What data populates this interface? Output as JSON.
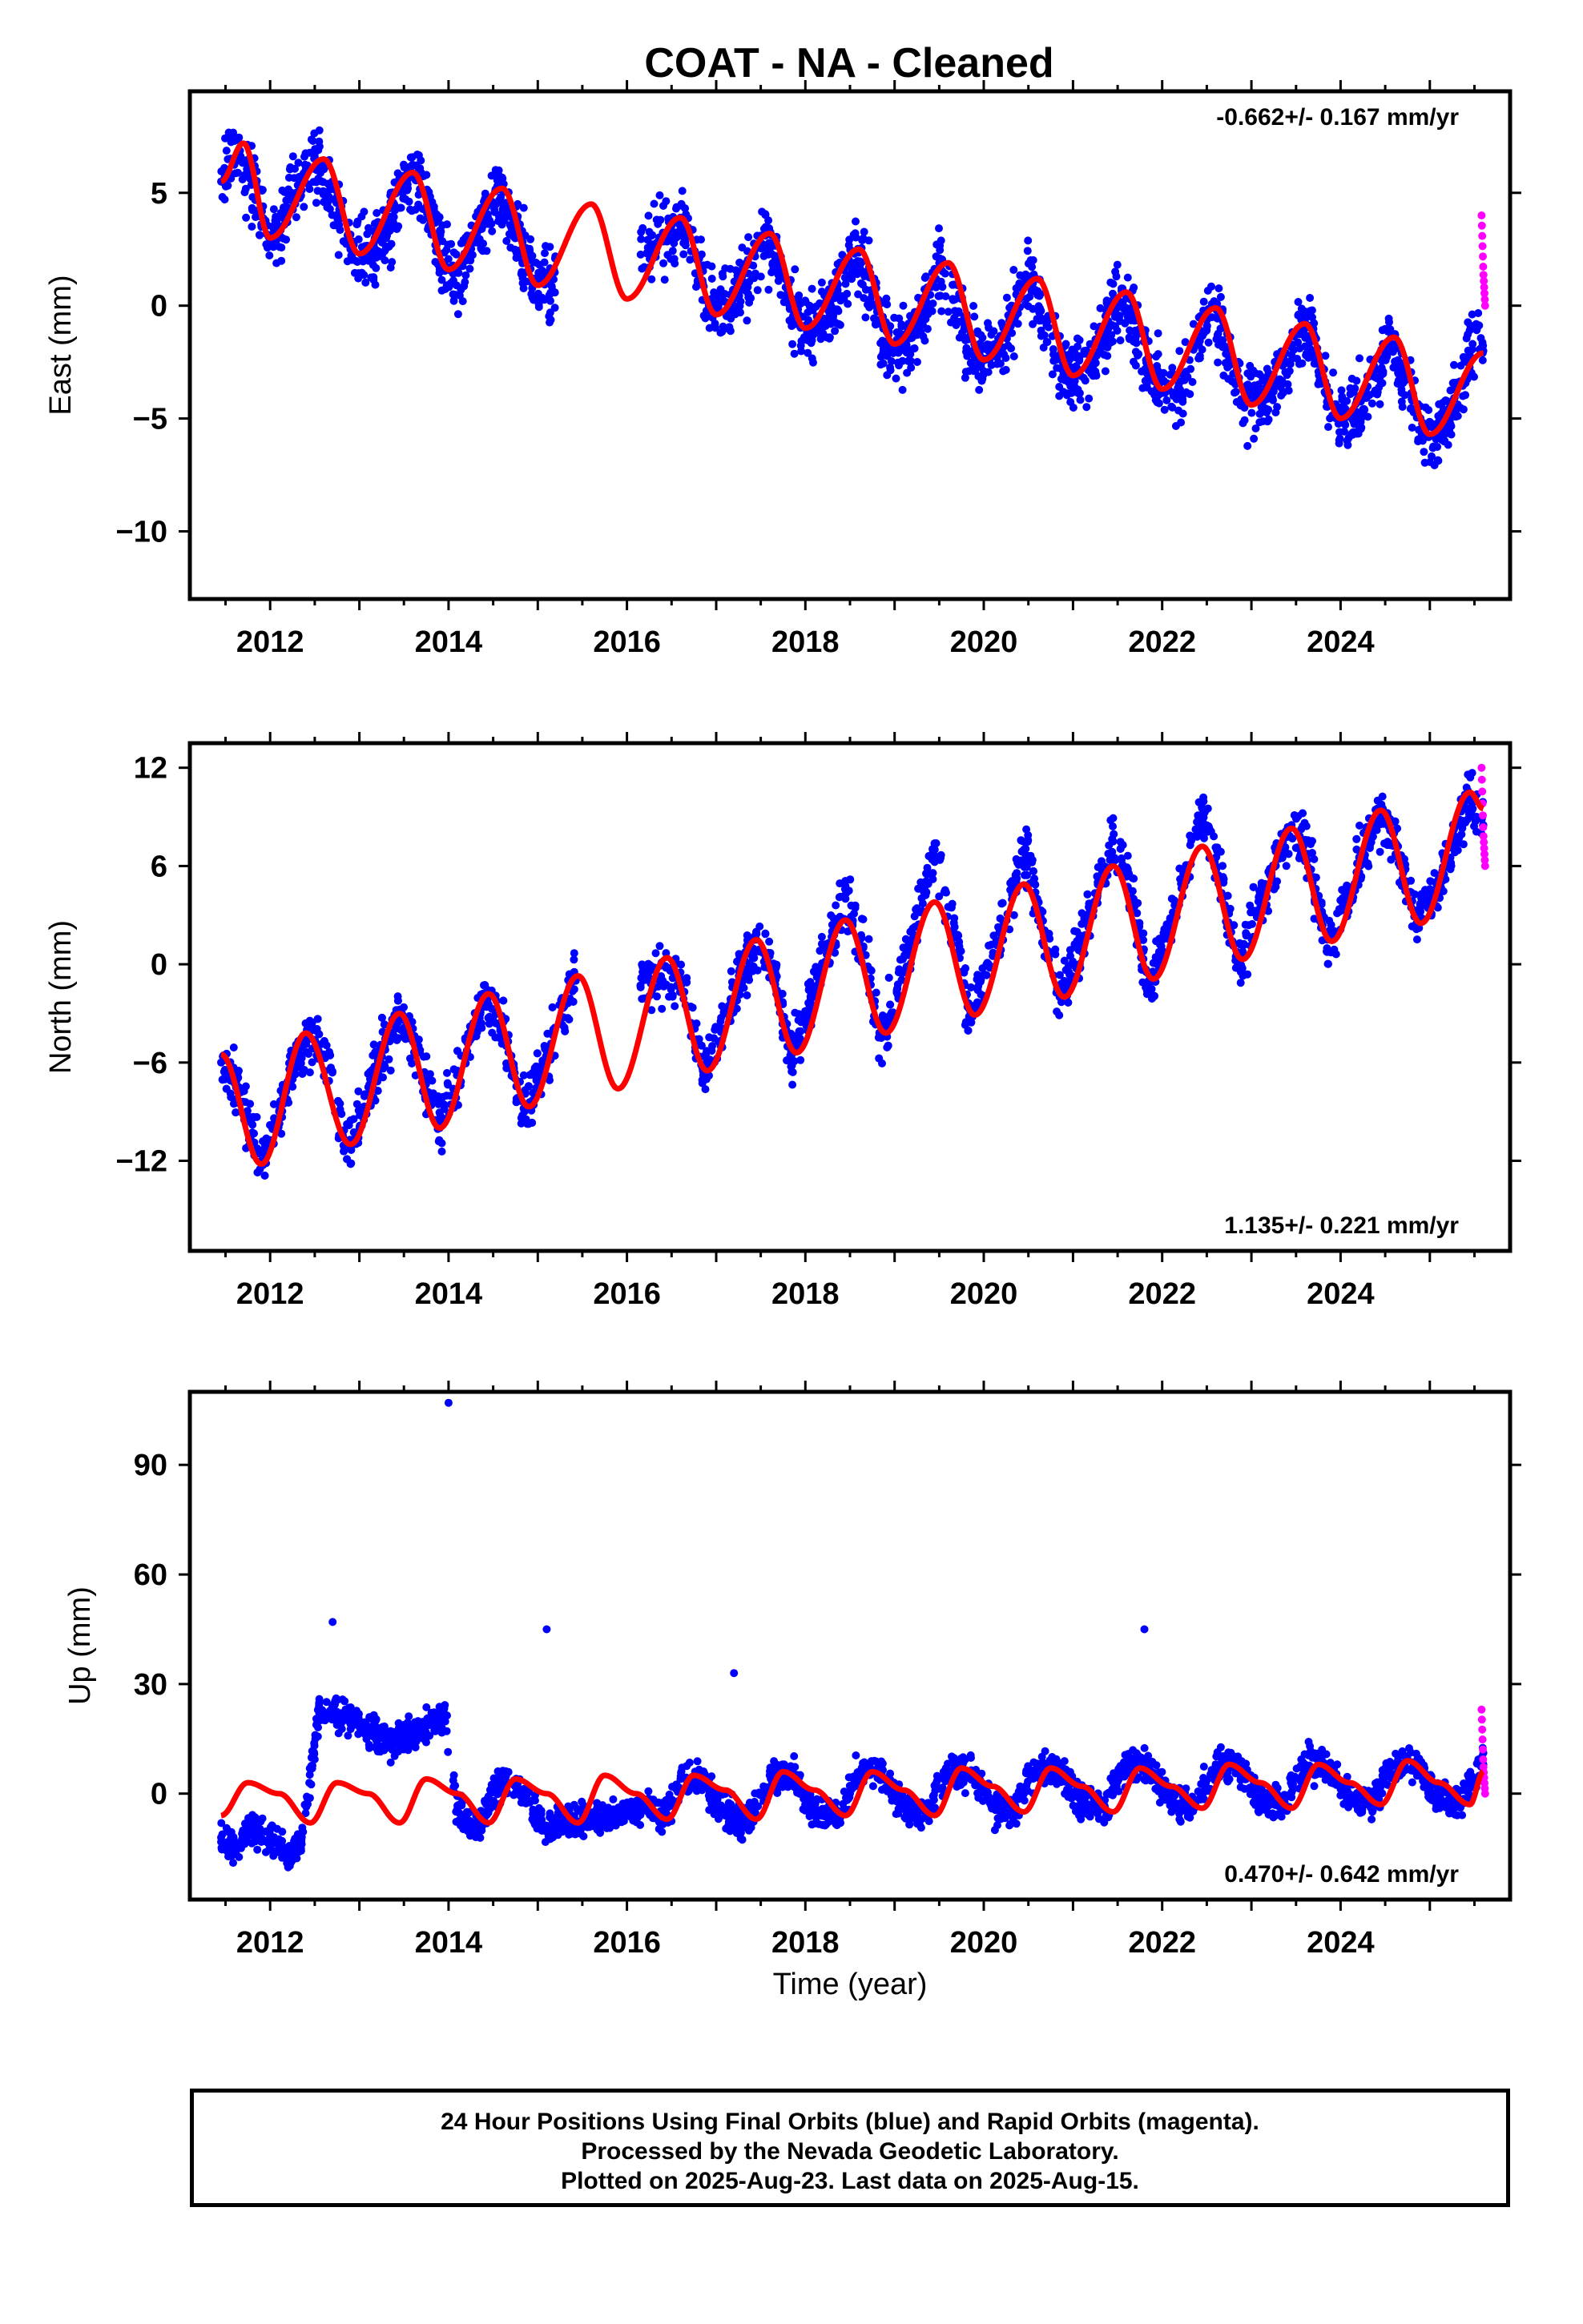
{
  "title": "COAT  - NA - Cleaned",
  "xlabel": "Time (year)",
  "footer": {
    "line1": "24 Hour Positions Using Final Orbits (blue) and Rapid Orbits (magenta).",
    "line2": "Processed by the Nevada Geodetic Laboratory.",
    "line3": "Plotted on 2025-Aug-23. Last data on 2025-Aug-15."
  },
  "colors": {
    "final": "#0000ff",
    "rapid": "#ff00ff",
    "model": "#ff0000",
    "frame": "#000000"
  },
  "chart_data": [
    {
      "type": "scatter",
      "component": "east",
      "ylabel": "East (mm)",
      "rate_text": "-0.662+/- 0.167 mm/yr",
      "rate_position": "top-right",
      "xlim": [
        2011.1,
        2025.9
      ],
      "ylim": [
        -13,
        9.5
      ],
      "xticks": [
        2012,
        2014,
        2016,
        2018,
        2020,
        2022,
        2024
      ],
      "xtick_labels": [
        "2012",
        "2014",
        "2016",
        "2018",
        "2020",
        "2022",
        "2024"
      ],
      "yticks": [
        5,
        0,
        -5,
        -10
      ],
      "ytick_labels": [
        "5",
        "0",
        "−5",
        "−10"
      ],
      "data_gap": [
        2015.2,
        2016.15
      ],
      "series": [
        {
          "role": "final_orbits",
          "x": [
            2011.45,
            2011.6,
            2011.75,
            2011.9,
            2012.0,
            2012.1,
            2012.25,
            2012.5,
            2012.65,
            2012.9,
            2013.1,
            2013.3,
            2013.5,
            2013.65,
            2013.8,
            2014.0,
            2014.1,
            2014.3,
            2014.55,
            2014.7,
            2014.95,
            2015.1,
            2016.4,
            2016.6,
            2016.85,
            2017.1,
            2017.3,
            2017.55,
            2017.7,
            2017.95,
            2018.25,
            2018.55,
            2018.75,
            2018.9,
            2019.25,
            2019.5,
            2019.65,
            2019.9,
            2020.2,
            2020.5,
            2020.65,
            2020.9,
            2021.2,
            2021.55,
            2021.7,
            2021.95,
            2022.25,
            2022.55,
            2022.7,
            2022.95,
            2023.25,
            2023.6,
            2023.75,
            2023.95,
            2024.25,
            2024.55,
            2024.7,
            2024.95,
            2025.2,
            2025.45,
            2025.6
          ],
          "y": [
            5.5,
            7.3,
            5.8,
            3.6,
            2.9,
            3.3,
            4.9,
            6.6,
            5.4,
            2.7,
            2.3,
            3.1,
            5.5,
            5.9,
            3.5,
            1.7,
            1.6,
            2.8,
            5.2,
            4.1,
            1.2,
            1.1,
            3.0,
            3.9,
            1.0,
            -0.3,
            0.8,
            3.1,
            1.6,
            -0.9,
            -0.6,
            2.3,
            0.5,
            -1.6,
            -1.3,
            1.9,
            0.3,
            -2.3,
            -2.0,
            1.3,
            -0.6,
            -3.0,
            -2.7,
            0.6,
            -1.1,
            -3.6,
            -3.3,
            -0.1,
            -1.8,
            -4.3,
            -3.8,
            -0.7,
            -2.5,
            -5.0,
            -4.6,
            -1.5,
            -3.2,
            -5.8,
            -5.3,
            -2.2,
            -2.0
          ]
        },
        {
          "role": "rapid_orbits",
          "x": [
            2025.58,
            2025.6,
            2025.62
          ],
          "y": [
            4.0,
            1.5,
            0.0
          ]
        },
        {
          "role": "model",
          "x": [
            2011.45,
            2011.7,
            2012.0,
            2012.6,
            2013.0,
            2013.6,
            2014.0,
            2014.6,
            2015.0,
            2015.6,
            2016.0,
            2016.6,
            2017.0,
            2017.6,
            2018.0,
            2018.6,
            2019.0,
            2019.6,
            2020.0,
            2020.6,
            2021.0,
            2021.6,
            2022.0,
            2022.6,
            2023.0,
            2023.6,
            2024.0,
            2024.6,
            2025.0,
            2025.6
          ],
          "y": [
            5.5,
            7.2,
            3.0,
            6.5,
            2.3,
            5.9,
            1.6,
            5.2,
            0.9,
            4.5,
            0.3,
            3.9,
            -0.4,
            3.2,
            -1.0,
            2.5,
            -1.7,
            1.9,
            -2.4,
            1.2,
            -3.1,
            0.6,
            -3.7,
            -0.1,
            -4.4,
            -0.8,
            -5.0,
            -1.4,
            -5.7,
            -2.1
          ]
        }
      ]
    },
    {
      "type": "scatter",
      "component": "north",
      "ylabel": "North (mm)",
      "rate_text": "1.135+/- 0.221 mm/yr",
      "rate_position": "bottom-right",
      "xlim": [
        2011.1,
        2025.9
      ],
      "ylim": [
        -17.5,
        13.5
      ],
      "xticks": [
        2012,
        2014,
        2016,
        2018,
        2020,
        2022,
        2024
      ],
      "xtick_labels": [
        "2012",
        "2014",
        "2016",
        "2018",
        "2020",
        "2022",
        "2024"
      ],
      "yticks": [
        12,
        6,
        0,
        -6,
        -12
      ],
      "ytick_labels": [
        "12",
        "6",
        "0",
        "−6",
        "−12"
      ],
      "data_gap": [
        2015.45,
        2016.15
      ],
      "series": [
        {
          "role": "final_orbits",
          "x": [
            2011.45,
            2011.65,
            2011.9,
            2012.1,
            2012.4,
            2012.6,
            2012.9,
            2013.1,
            2013.45,
            2013.6,
            2013.9,
            2014.1,
            2014.4,
            2014.6,
            2014.85,
            2015.1,
            2015.4,
            2016.4,
            2016.6,
            2016.85,
            2017.1,
            2017.45,
            2017.6,
            2017.85,
            2018.1,
            2018.45,
            2018.65,
            2018.85,
            2019.1,
            2019.45,
            2019.6,
            2019.85,
            2020.1,
            2020.45,
            2020.6,
            2020.85,
            2021.1,
            2021.45,
            2021.6,
            2021.85,
            2022.1,
            2022.45,
            2022.6,
            2022.85,
            2023.1,
            2023.45,
            2023.6,
            2023.85,
            2024.1,
            2024.45,
            2024.6,
            2024.85,
            2025.1,
            2025.45,
            2025.6
          ],
          "y": [
            -6.0,
            -7.5,
            -12.0,
            -9.0,
            -4.5,
            -5.5,
            -11.0,
            -7.5,
            -3.0,
            -4.5,
            -10.0,
            -6.5,
            -2.2,
            -3.5,
            -9.0,
            -5.5,
            -1.0,
            -1.0,
            -0.5,
            -6.5,
            -3.0,
            1.5,
            0.5,
            -5.5,
            -1.5,
            4.0,
            1.0,
            -4.5,
            -0.5,
            7.0,
            3.5,
            -3.0,
            0.5,
            7.0,
            4.0,
            -2.0,
            1.5,
            7.5,
            5.5,
            -1.0,
            2.5,
            9.5,
            6.5,
            0.0,
            3.5,
            8.5,
            7.5,
            1.5,
            4.5,
            9.0,
            8.0,
            2.5,
            5.0,
            10.0,
            8.5
          ]
        },
        {
          "role": "rapid_orbits",
          "x": [
            2025.58,
            2025.6,
            2025.62
          ],
          "y": [
            12.0,
            8.0,
            6.0
          ]
        },
        {
          "role": "model",
          "x": [
            2011.45,
            2011.9,
            2012.4,
            2012.9,
            2013.45,
            2013.9,
            2014.45,
            2014.9,
            2015.45,
            2015.9,
            2016.45,
            2016.9,
            2017.45,
            2017.9,
            2018.45,
            2018.9,
            2019.45,
            2019.9,
            2020.45,
            2020.9,
            2021.45,
            2021.9,
            2022.45,
            2022.9,
            2023.45,
            2023.9,
            2024.45,
            2024.9,
            2025.45,
            2025.6
          ],
          "y": [
            -5.5,
            -12.2,
            -4.2,
            -11.0,
            -3.0,
            -10.0,
            -1.8,
            -8.7,
            -0.7,
            -7.6,
            0.4,
            -6.5,
            1.5,
            -5.4,
            2.7,
            -4.2,
            3.8,
            -3.1,
            4.9,
            -2.0,
            6.0,
            -0.9,
            7.2,
            0.3,
            8.3,
            1.4,
            9.4,
            2.5,
            10.5,
            9.5
          ]
        }
      ]
    },
    {
      "type": "scatter",
      "component": "up",
      "ylabel": "Up (mm)",
      "rate_text": "0.470+/- 0.642 mm/yr",
      "rate_position": "bottom-right",
      "xlim": [
        2011.1,
        2025.9
      ],
      "ylim": [
        -29,
        110
      ],
      "xticks": [
        2012,
        2014,
        2016,
        2018,
        2020,
        2022,
        2024
      ],
      "xtick_labels": [
        "2012",
        "2014",
        "2016",
        "2018",
        "2020",
        "2022",
        "2024"
      ],
      "yticks": [
        90,
        60,
        30,
        0
      ],
      "ytick_labels": [
        "90",
        "60",
        "30",
        "0"
      ],
      "data_gap": [
        2014.0,
        2014.05
      ],
      "series": [
        {
          "role": "final_orbits",
          "x": [
            2011.45,
            2011.6,
            2011.8,
            2012.0,
            2012.2,
            2012.35,
            2012.55,
            2012.8,
            2013.0,
            2013.3,
            2013.55,
            2013.8,
            2013.95,
            2014.1,
            2014.3,
            2014.6,
            2014.85,
            2015.1,
            2015.3,
            2016.25,
            2016.4,
            2016.6,
            2016.85,
            2017.1,
            2017.35,
            2017.6,
            2017.85,
            2018.1,
            2018.35,
            2018.6,
            2018.85,
            2019.1,
            2019.35,
            2019.6,
            2019.85,
            2020.1,
            2020.35,
            2020.6,
            2020.85,
            2021.1,
            2021.35,
            2021.6,
            2021.85,
            2022.1,
            2022.35,
            2022.6,
            2022.85,
            2023.1,
            2023.35,
            2023.6,
            2023.85,
            2024.1,
            2024.35,
            2024.6,
            2024.85,
            2025.1,
            2025.35,
            2025.6
          ],
          "y": [
            -12,
            -14,
            -10,
            -12,
            -17,
            -13,
            22,
            22,
            20,
            14,
            16,
            20,
            22,
            -4,
            -10,
            4,
            0,
            -10,
            -8,
            -4,
            -6,
            4,
            4,
            -6,
            -8,
            5,
            5,
            -5,
            -6,
            6,
            6,
            -4,
            -5,
            6,
            6,
            -3,
            -4,
            7,
            7,
            -2,
            -4,
            8,
            7,
            -2,
            -3,
            8,
            7,
            -2,
            -3,
            8,
            8,
            -1,
            -2,
            8,
            8,
            -1,
            -2,
            8
          ]
        },
        {
          "role": "outliers",
          "x": [
            2012.7,
            2014.0,
            2015.1,
            2017.2,
            2021.8
          ],
          "y": [
            47,
            107,
            45,
            33,
            45
          ]
        },
        {
          "role": "rapid_orbits",
          "x": [
            2025.58,
            2025.6,
            2025.62
          ],
          "y": [
            23,
            8,
            0
          ]
        },
        {
          "role": "model",
          "x": [
            2011.45,
            2011.75,
            2012.1,
            2012.45,
            2012.75,
            2013.1,
            2013.45,
            2013.75,
            2014.1,
            2014.45,
            2014.75,
            2015.1,
            2015.45,
            2015.75,
            2016.1,
            2016.45,
            2016.75,
            2017.1,
            2017.45,
            2017.75,
            2018.1,
            2018.45,
            2018.75,
            2019.1,
            2019.45,
            2019.75,
            2020.1,
            2020.45,
            2020.75,
            2021.1,
            2021.45,
            2021.75,
            2022.1,
            2022.45,
            2022.75,
            2023.1,
            2023.45,
            2023.75,
            2024.1,
            2024.45,
            2024.75,
            2025.1,
            2025.45,
            2025.6
          ],
          "y": [
            -6,
            3,
            0,
            -8,
            3,
            0,
            -8,
            4,
            0,
            -8,
            4,
            0,
            -8,
            5,
            0,
            -7,
            5,
            1,
            -7,
            6,
            1,
            -6,
            6,
            1,
            -6,
            7,
            2,
            -5,
            7,
            2,
            -5,
            7,
            2,
            -4,
            8,
            3,
            -4,
            8,
            3,
            -3,
            9,
            3,
            -3,
            6
          ]
        }
      ]
    }
  ]
}
